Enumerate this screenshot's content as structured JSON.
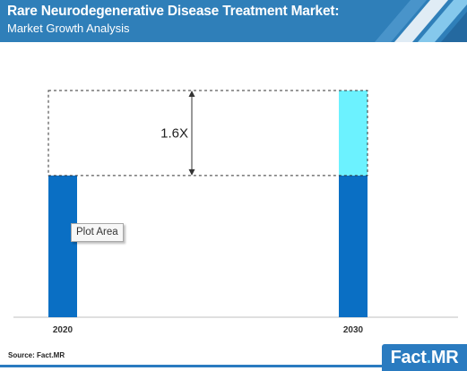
{
  "header": {
    "title": "Rare Neurodegenerative Disease Treatment Market:",
    "subtitle": "Market Growth Analysis"
  },
  "chart_data": {
    "type": "bar",
    "categories": [
      "2020",
      "2030"
    ],
    "series": [
      {
        "values": [
          1.0,
          1.0
        ],
        "color": "#0a6fc4"
      },
      {
        "values": [
          0,
          0.6
        ],
        "color": "#6cf2ff"
      }
    ],
    "stacked": true,
    "annotation": "1.6X",
    "ylim": [
      0,
      1.6
    ],
    "grid": false,
    "axis_visible": false
  },
  "tooltip": {
    "label": "Plot Area"
  },
  "source": "Source: Fact.MR",
  "logo": {
    "brand": "Fact",
    "dot": ".",
    "suffix": "MR"
  },
  "colors": {
    "header": "#2f7fb9",
    "base_bar": "#0a6fc4",
    "growth_bar": "#6cf2ff",
    "logo": "#2a7bc0"
  }
}
